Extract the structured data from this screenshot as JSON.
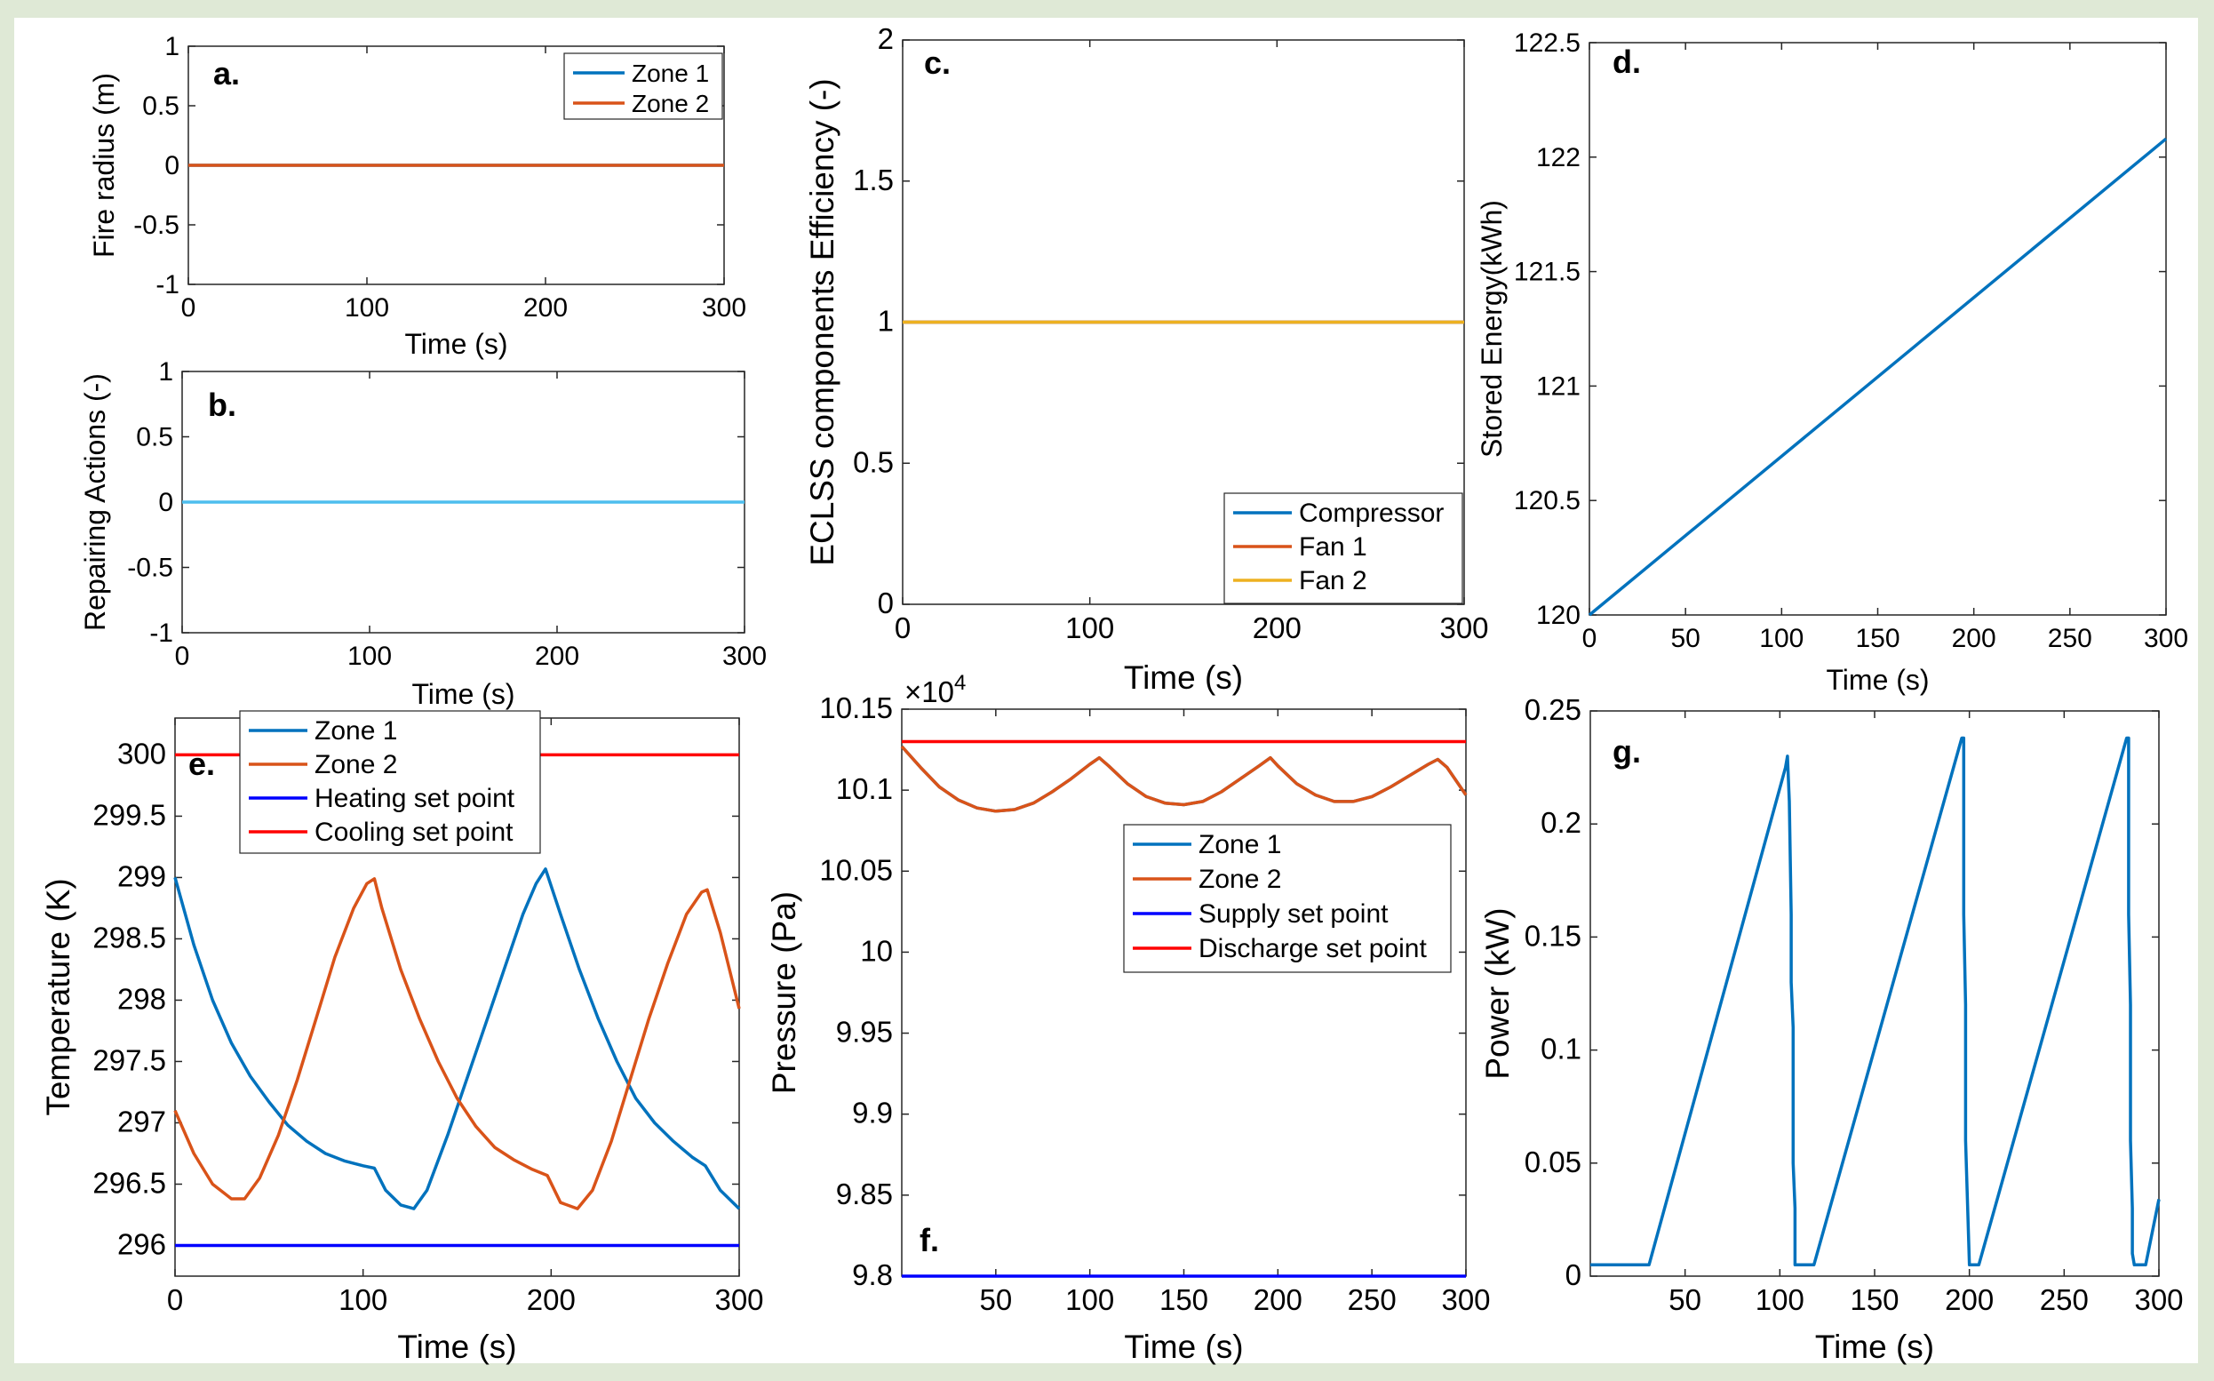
{
  "chart_data": [
    {
      "id": "a",
      "type": "line",
      "panel_label": "a.",
      "xlabel": "Time (s)",
      "ylabel": "Fire radius (m)",
      "xlim": [
        0,
        300
      ],
      "ylim": [
        -1,
        1
      ],
      "xticks": [
        0,
        100,
        200,
        300
      ],
      "yticks": [
        -1,
        -0.5,
        0,
        0.5,
        1
      ],
      "legend_position": "top-right",
      "series": [
        {
          "name": "Zone 1",
          "color": "#0072BD",
          "x": [
            0,
            300
          ],
          "y": [
            0,
            0
          ]
        },
        {
          "name": "Zone 2",
          "color": "#D95319",
          "x": [
            0,
            300
          ],
          "y": [
            0,
            0
          ]
        }
      ]
    },
    {
      "id": "b",
      "type": "line",
      "panel_label": "b.",
      "xlabel": "Time (s)",
      "ylabel": "Repairing Actions (-)",
      "xlim": [
        0,
        300
      ],
      "ylim": [
        -1,
        1
      ],
      "xticks": [
        0,
        100,
        200,
        300
      ],
      "yticks": [
        -1,
        -0.5,
        0,
        0.5,
        1
      ],
      "series": [
        {
          "name": "Repairing actions",
          "color": "#4DBEEE",
          "x": [
            0,
            300
          ],
          "y": [
            0,
            0
          ]
        }
      ]
    },
    {
      "id": "c",
      "type": "line",
      "panel_label": "c.",
      "xlabel": "Time (s)",
      "ylabel": "ECLSS components Efficiency (-)",
      "xlim": [
        0,
        300
      ],
      "ylim": [
        0,
        2
      ],
      "xticks": [
        0,
        100,
        200,
        300
      ],
      "yticks": [
        0,
        0.5,
        1,
        1.5,
        2
      ],
      "legend_position": "bottom-right",
      "series": [
        {
          "name": "Compressor",
          "color": "#0072BD",
          "x": [
            0,
            300
          ],
          "y": [
            1,
            1
          ]
        },
        {
          "name": "Fan 1",
          "color": "#D95319",
          "x": [
            0,
            300
          ],
          "y": [
            1,
            1
          ]
        },
        {
          "name": "Fan 2",
          "color": "#EDB120",
          "x": [
            0,
            300
          ],
          "y": [
            1,
            1
          ]
        }
      ]
    },
    {
      "id": "d",
      "type": "line",
      "panel_label": "d.",
      "xlabel": "Time (s)",
      "ylabel": "Stored Energy(kWh)",
      "xlim": [
        0,
        300
      ],
      "ylim": [
        120,
        122.5
      ],
      "xticks": [
        0,
        50,
        100,
        150,
        200,
        250,
        300
      ],
      "yticks": [
        120,
        120.5,
        121,
        121.5,
        122,
        122.5
      ],
      "series": [
        {
          "name": "Stored energy",
          "color": "#0072BD",
          "x": [
            0,
            300
          ],
          "y": [
            120.0,
            122.08
          ]
        }
      ]
    },
    {
      "id": "e",
      "type": "line",
      "panel_label": "e.",
      "xlabel": "Time (s)",
      "ylabel": "Temperature (K)",
      "xlim": [
        0,
        300
      ],
      "ylim": [
        295.75,
        300.3
      ],
      "xticks": [
        0,
        100,
        200,
        300
      ],
      "yticks": [
        296,
        296.5,
        297,
        297.5,
        298,
        298.5,
        299,
        299.5,
        300
      ],
      "legend_position": "top-left",
      "series": [
        {
          "name": "Zone 1",
          "color": "#0072BD",
          "x": [
            0,
            10,
            20,
            30,
            40,
            50,
            60,
            70,
            80,
            90,
            100,
            106,
            112,
            120,
            127,
            134,
            145,
            155,
            165,
            175,
            185,
            192,
            197,
            205,
            215,
            225,
            235,
            245,
            255,
            265,
            275,
            282,
            290,
            300
          ],
          "y": [
            299.0,
            298.45,
            298.0,
            297.65,
            297.38,
            297.17,
            296.98,
            296.85,
            296.75,
            296.69,
            296.65,
            296.63,
            296.45,
            296.33,
            296.3,
            296.45,
            296.9,
            297.35,
            297.8,
            298.25,
            298.7,
            298.95,
            299.07,
            298.7,
            298.25,
            297.85,
            297.5,
            297.2,
            297.0,
            296.85,
            296.72,
            296.65,
            296.45,
            296.3
          ]
        },
        {
          "name": "Zone 2",
          "color": "#D95319",
          "x": [
            0,
            10,
            20,
            30,
            37,
            45,
            55,
            65,
            75,
            85,
            95,
            102,
            106,
            110,
            120,
            130,
            140,
            150,
            160,
            170,
            180,
            190,
            198,
            205,
            214,
            222,
            232,
            242,
            252,
            262,
            272,
            280,
            283,
            290,
            300
          ],
          "y": [
            297.1,
            296.75,
            296.5,
            296.38,
            296.38,
            296.55,
            296.9,
            297.35,
            297.85,
            298.35,
            298.75,
            298.95,
            298.99,
            298.75,
            298.25,
            297.85,
            297.5,
            297.2,
            296.97,
            296.8,
            296.7,
            296.62,
            296.57,
            296.35,
            296.3,
            296.45,
            296.85,
            297.35,
            297.85,
            298.3,
            298.7,
            298.88,
            298.9,
            298.55,
            297.93
          ]
        },
        {
          "name": "Heating set point",
          "color": "#0000FF",
          "x": [
            0,
            300
          ],
          "y": [
            296,
            296
          ]
        },
        {
          "name": "Cooling set point",
          "color": "#FF0000",
          "x": [
            0,
            300
          ],
          "y": [
            300,
            300
          ]
        }
      ]
    },
    {
      "id": "f",
      "type": "line",
      "panel_label": "f.",
      "xlabel": "Time (s)",
      "ylabel": "Pressure (Pa)",
      "y_multiplier": "×10",
      "y_multiplier_exponent": "4",
      "xlim": [
        0,
        300
      ],
      "ylim": [
        9.8,
        10.15
      ],
      "xticks": [
        50,
        100,
        150,
        200,
        250,
        300
      ],
      "yticks": [
        9.8,
        9.85,
        9.9,
        9.95,
        10,
        10.05,
        10.1,
        10.15
      ],
      "legend_position": "center-right",
      "series": [
        {
          "name": "Zone 1",
          "color": "#0072BD",
          "x": [
            0,
            10,
            20,
            30,
            40,
            50,
            60,
            70,
            80,
            90,
            100,
            105,
            110,
            120,
            130,
            140,
            150,
            160,
            170,
            180,
            190,
            196,
            200,
            210,
            220,
            230,
            240,
            250,
            260,
            270,
            280,
            285,
            290,
            300
          ],
          "y": [
            10.127,
            10.114,
            10.102,
            10.094,
            10.089,
            10.087,
            10.088,
            10.092,
            10.099,
            10.107,
            10.116,
            10.12,
            10.115,
            10.104,
            10.096,
            10.092,
            10.091,
            10.093,
            10.099,
            10.107,
            10.115,
            10.12,
            10.115,
            10.104,
            10.097,
            10.093,
            10.093,
            10.096,
            10.102,
            10.109,
            10.116,
            10.119,
            10.114,
            10.097
          ]
        },
        {
          "name": "Zone 2",
          "color": "#D95319",
          "x": [
            0,
            10,
            20,
            30,
            40,
            50,
            60,
            70,
            80,
            90,
            100,
            105,
            110,
            120,
            130,
            140,
            150,
            160,
            170,
            180,
            190,
            196,
            200,
            210,
            220,
            230,
            240,
            250,
            260,
            270,
            280,
            285,
            290,
            300
          ],
          "y": [
            10.127,
            10.114,
            10.102,
            10.094,
            10.089,
            10.087,
            10.088,
            10.092,
            10.099,
            10.107,
            10.116,
            10.12,
            10.115,
            10.104,
            10.096,
            10.092,
            10.091,
            10.093,
            10.099,
            10.107,
            10.115,
            10.12,
            10.115,
            10.104,
            10.097,
            10.093,
            10.093,
            10.096,
            10.102,
            10.109,
            10.116,
            10.119,
            10.114,
            10.097
          ]
        },
        {
          "name": "Supply set point",
          "color": "#0000FF",
          "x": [
            0,
            300
          ],
          "y": [
            9.8,
            9.8
          ]
        },
        {
          "name": "Discharge set point",
          "color": "#FF0000",
          "x": [
            0,
            300
          ],
          "y": [
            10.13,
            10.13
          ]
        }
      ]
    },
    {
      "id": "g",
      "type": "line",
      "panel_label": "g.",
      "xlabel": "Time (s)",
      "ylabel": "Power (kW)",
      "xlim": [
        0,
        300
      ],
      "ylim": [
        0,
        0.25
      ],
      "xticks": [
        50,
        100,
        150,
        200,
        250,
        300
      ],
      "yticks": [
        0,
        0.05,
        0.1,
        0.15,
        0.2,
        0.25
      ],
      "series": [
        {
          "name": "Power",
          "color": "#0072BD",
          "x": [
            0,
            31,
            103,
            104,
            105,
            106,
            106,
            107,
            107,
            108,
            108,
            109,
            118,
            196,
            197,
            197,
            198,
            198,
            200,
            205,
            283,
            284,
            284,
            285,
            285,
            286,
            286,
            287,
            289,
            293,
            300
          ],
          "y": [
            0.005,
            0.005,
            0.225,
            0.23,
            0.21,
            0.16,
            0.13,
            0.11,
            0.05,
            0.03,
            0.005,
            0.005,
            0.005,
            0.238,
            0.238,
            0.16,
            0.12,
            0.06,
            0.005,
            0.005,
            0.238,
            0.238,
            0.16,
            0.12,
            0.06,
            0.03,
            0.01,
            0.005,
            0.005,
            0.005,
            0.034
          ]
        }
      ]
    }
  ]
}
